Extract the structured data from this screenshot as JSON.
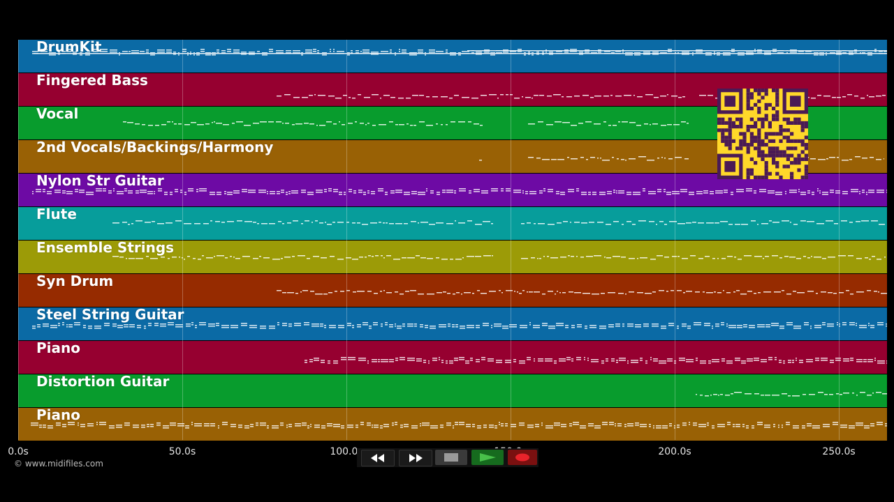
{
  "player": {
    "time_axis": {
      "unit": "s",
      "ticks": [
        {
          "value": 0,
          "label": "0.0s"
        },
        {
          "value": 50,
          "label": "50.0s"
        },
        {
          "value": 100,
          "label": "100.0s"
        },
        {
          "value": 150,
          "label": "150.0s"
        },
        {
          "value": 200,
          "label": "200.0s"
        },
        {
          "value": 250,
          "label": "250.0s"
        }
      ]
    },
    "copyright": "© www.midifiles.com",
    "controls": {
      "rewind": "rewind-icon",
      "fast_forward": "fast-forward-icon",
      "stop": "stop-icon",
      "play": "play-icon",
      "record": "record-icon"
    },
    "qr_code": "qr-code"
  },
  "tracks": [
    {
      "name": "DrumKit",
      "color": "#0b6aa5"
    },
    {
      "name": "Fingered Bass",
      "color": "#960030"
    },
    {
      "name": "Vocal",
      "color": "#089c2d"
    },
    {
      "name": "2nd Vocals/Backings/Harmony",
      "color": "#996105"
    },
    {
      "name": "Nylon Str Guitar",
      "color": "#6d0aa4"
    },
    {
      "name": "Flute",
      "color": "#079d9b"
    },
    {
      "name": "Ensemble Strings",
      "color": "#9c9b07"
    },
    {
      "name": "Syn Drum",
      "color": "#962b00"
    },
    {
      "name": "Steel String Guitar",
      "color": "#0b6aa5"
    },
    {
      "name": "Piano",
      "color": "#960030"
    },
    {
      "name": "Distortion Guitar",
      "color": "#089c2d"
    },
    {
      "name": "Piano",
      "color": "#996105"
    }
  ]
}
